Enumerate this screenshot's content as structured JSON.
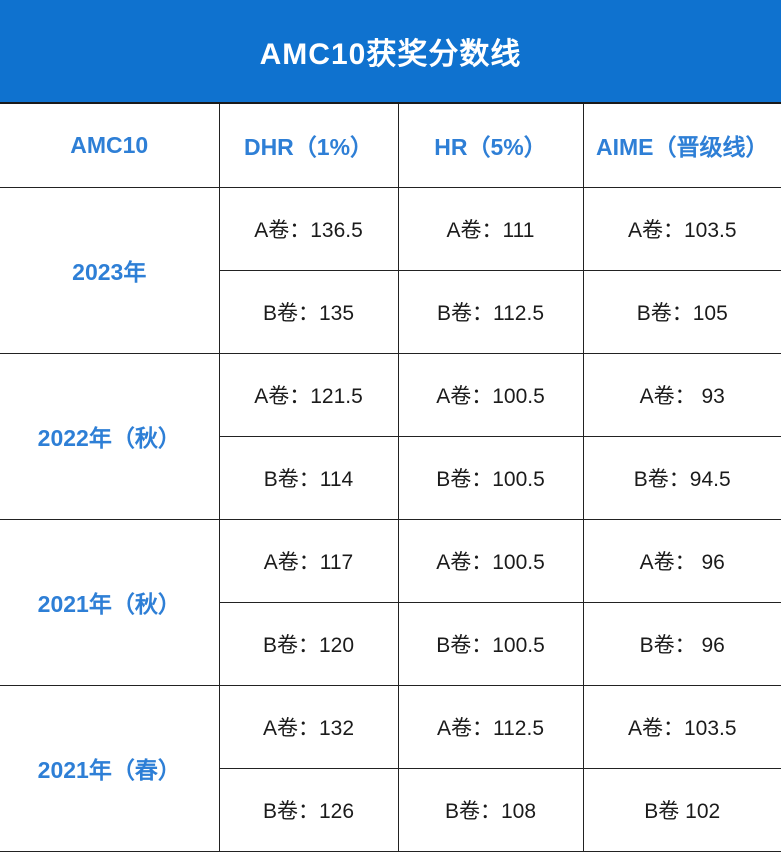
{
  "title": "AMC10获奖分数线",
  "colors": {
    "banner_bg": "#0f72cf",
    "banner_text": "#ffffff",
    "header_text": "#2e7fd6",
    "cell_text": "#1b1b1b",
    "grid_line": "#222222"
  },
  "headers": [
    "AMC10",
    "DHR（1%）",
    "HR（5%）",
    "AIME（晋级线）"
  ],
  "years": [
    {
      "label": "2023年",
      "rows": [
        [
          "A卷：136.5",
          "A卷：111",
          "A卷：103.5"
        ],
        [
          "B卷：135",
          "B卷：112.5",
          "B卷：105"
        ]
      ]
    },
    {
      "label": "2022年（秋）",
      "rows": [
        [
          "A卷：121.5",
          "A卷：100.5",
          "A卷： 93"
        ],
        [
          "B卷：114",
          "B卷：100.5",
          "B卷：94.5"
        ]
      ]
    },
    {
      "label": "2021年（秋）",
      "rows": [
        [
          "A卷：117",
          "A卷：100.5",
          "A卷： 96"
        ],
        [
          "B卷：120",
          "B卷：100.5",
          "B卷： 96"
        ]
      ]
    },
    {
      "label": "2021年（春）",
      "rows": [
        [
          "A卷：132",
          "A卷：112.5",
          "A卷：103.5"
        ],
        [
          "B卷：126",
          "B卷：108",
          "B卷  102"
        ]
      ]
    }
  ]
}
